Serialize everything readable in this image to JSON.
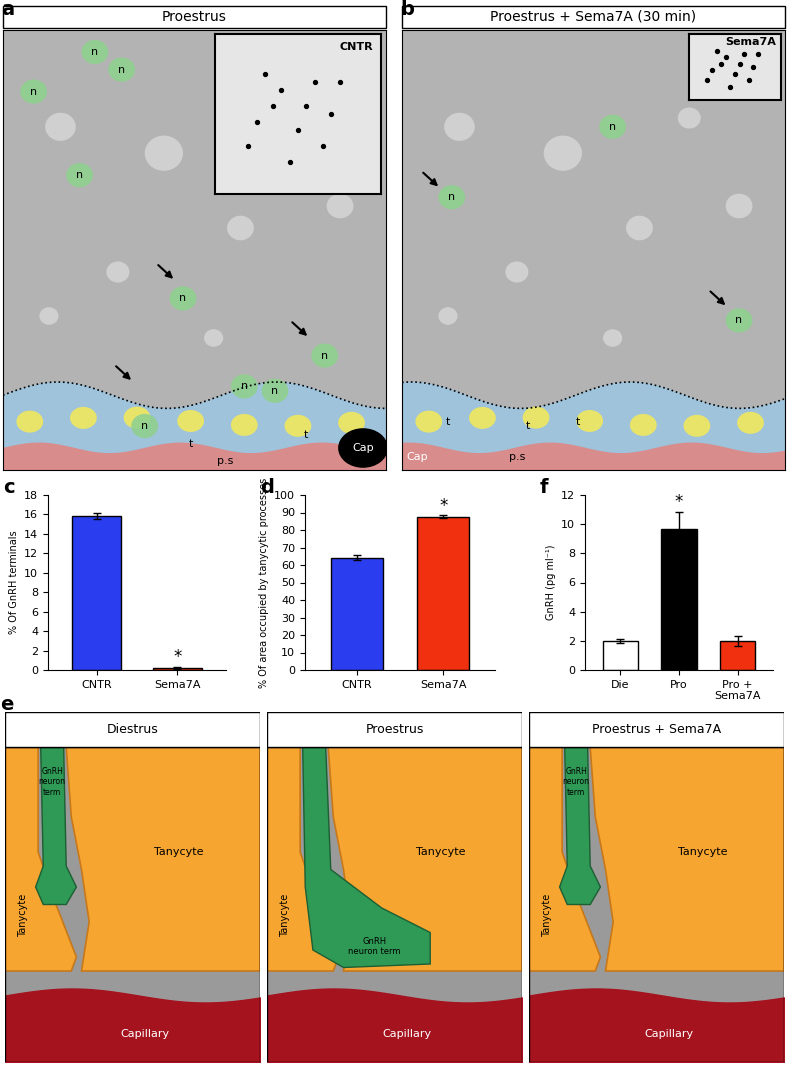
{
  "chart_data": [
    {
      "panel": "c",
      "type": "bar",
      "categories": [
        "CNTR",
        "Sema7A"
      ],
      "values": [
        15.8,
        0.2
      ],
      "errors": [
        0.3,
        0.1
      ],
      "colors": [
        "#2a3ef0",
        "#f0300f"
      ],
      "annotations": [
        null,
        "*"
      ],
      "ylabel": "% Of GnRH terminals",
      "ylim": [
        0,
        18
      ],
      "yticks": [
        0,
        2,
        4,
        6,
        8,
        10,
        12,
        14,
        16,
        18
      ]
    },
    {
      "panel": "d",
      "type": "bar",
      "categories": [
        "CNTR",
        "Sema7A"
      ],
      "values": [
        64.2,
        87.6
      ],
      "errors": [
        1.5,
        0.7
      ],
      "colors": [
        "#2a3ef0",
        "#f0300f"
      ],
      "annotations": [
        null,
        "*"
      ],
      "ylabel": "% Of area occupied by tanycytic processes",
      "ylim": [
        0,
        100
      ],
      "yticks": [
        0,
        10,
        20,
        30,
        40,
        50,
        60,
        70,
        80,
        90,
        100
      ]
    },
    {
      "panel": "f",
      "type": "bar",
      "categories": [
        "Die",
        "Pro",
        "Pro +\nSema7A"
      ],
      "values": [
        2.0,
        9.7,
        2.0
      ],
      "errors": [
        0.15,
        1.15,
        0.35
      ],
      "colors": [
        "#ffffff",
        "#000000",
        "#f0300f"
      ],
      "annotations": [
        null,
        "*",
        null
      ],
      "ylabel": "GnRH (pg ml⁻¹)",
      "ylim": [
        0,
        12
      ],
      "yticks": [
        0,
        2,
        4,
        6,
        8,
        10,
        12
      ]
    }
  ],
  "micrographs": [
    {
      "panel": "a",
      "title": "Proestrus",
      "inset": "CNTR",
      "labels": [
        "n",
        "n",
        "n",
        "n",
        "n",
        "n",
        "n",
        "n",
        "n",
        "t",
        "t",
        "Cap",
        "p.s"
      ]
    },
    {
      "panel": "b",
      "title": "Proestrus + Sema7A (30 min)",
      "inset": "Sema7A",
      "labels": [
        "n",
        "n",
        "n",
        "t",
        "t",
        "t",
        "p.s",
        "Cap"
      ]
    }
  ],
  "schematic": {
    "panel": "e",
    "panels": [
      {
        "title": "Diestrus",
        "terminal": "GnRH\nneuron\nterm",
        "cells": [
          "Tanycyte",
          "Tanycyte"
        ],
        "vessel": "Capillary",
        "terminal_reaches_vessel": false
      },
      {
        "title": "Proestrus",
        "terminal": "GnRH\nneuron term",
        "cells": [
          "Tanycyte",
          "Tanycyte"
        ],
        "vessel": "Capillary",
        "terminal_reaches_vessel": true
      },
      {
        "title": "Proestrus + Sema7A",
        "terminal": "GnRH\nneuron\nterm",
        "cells": [
          "Tanycyte",
          "Tanycyte"
        ],
        "vessel": "Capillary",
        "terminal_reaches_vessel": false
      }
    ]
  }
}
